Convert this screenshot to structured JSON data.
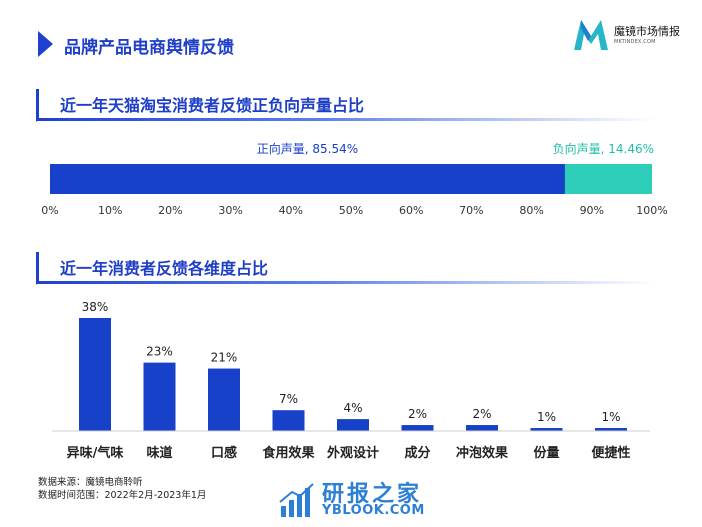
{
  "header": {
    "title": "品牌产品电商舆情反馈",
    "logo_name": "魔镜市场情报",
    "logo_url": "MKTINDEX.COM",
    "accent_color": "#1f3fcf"
  },
  "section1": {
    "title": "近一年天猫淘宝消费者反馈正负向声量占比"
  },
  "section2": {
    "title": "近一年消费者反馈各维度占比"
  },
  "chart_data": [
    {
      "type": "bar",
      "orientation": "horizontal-stacked",
      "series": [
        {
          "name": "正向声量",
          "value": 85.54,
          "label": "正向声量, 85.54%",
          "color": "#1741c9",
          "label_color": "#1741c9"
        },
        {
          "name": "负向声量",
          "value": 14.46,
          "label": "负向声量, 14.46%",
          "color": "#2dcdb7",
          "label_color": "#1fbfa8"
        }
      ],
      "xlim": [
        0,
        100
      ],
      "ticks": [
        0,
        10,
        20,
        30,
        40,
        50,
        60,
        70,
        80,
        90,
        100
      ],
      "tick_labels": [
        "0%",
        "10%",
        "20%",
        "30%",
        "40%",
        "50%",
        "60%",
        "70%",
        "80%",
        "90%",
        "100%"
      ],
      "grid": false
    },
    {
      "type": "bar",
      "categories": [
        "异味/气味",
        "味道",
        "口感",
        "食用效果",
        "外观设计",
        "成分",
        "冲泡效果",
        "份量",
        "便捷性"
      ],
      "values": [
        38,
        23,
        21,
        7,
        4,
        2,
        2,
        1,
        1
      ],
      "value_labels": [
        "38%",
        "23%",
        "21%",
        "7%",
        "4%",
        "2%",
        "2%",
        "1%",
        "1%"
      ],
      "ylim": [
        0,
        38
      ],
      "color": "#1741c9",
      "grid": false
    }
  ],
  "footer": {
    "source_line": "数据来源：魔镜电商聆听",
    "period_line": "数据时间范围：2022年2月-2023年1月"
  },
  "watermark": {
    "text": "研报之家",
    "url": "YBLOOK.COM"
  }
}
